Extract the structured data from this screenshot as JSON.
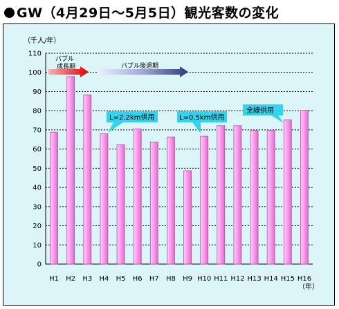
{
  "title": "GW（4月29日〜5月5日）観光客数の変化",
  "chart_data": {
    "type": "bar",
    "ylabel": "（千人/年）",
    "xunit": "（年）",
    "ylim": [
      0,
      110
    ],
    "yticks": [
      0,
      10,
      20,
      30,
      40,
      50,
      60,
      70,
      80,
      90,
      100,
      110
    ],
    "grid": true,
    "categories": [
      "H1",
      "H2",
      "H3",
      "H4",
      "H5",
      "H6",
      "H7",
      "H8",
      "H9",
      "H10",
      "H11",
      "H12",
      "H13",
      "H14",
      "H15",
      "H16"
    ],
    "values": [
      68.8,
      97.8,
      88.3,
      68.0,
      62.3,
      70.5,
      63.7,
      66.3,
      48.7,
      66.7,
      72.2,
      72.2,
      69.8,
      69.8,
      75.3,
      80.2
    ],
    "colors": {
      "bar": "#ff9cf0",
      "bar_dark": "#b050a0",
      "panel": "#dcf5f8",
      "callout": "#33d3ee"
    },
    "annotations": {
      "bubble_arrow_label_1": "バブル",
      "bubble_arrow_label_2": "成長期",
      "bubble_decline_label": "バブル後退期",
      "callouts": [
        {
          "text": "L=2.2km供用",
          "category": "H4"
        },
        {
          "text": "L=0.5km供用",
          "category": "H10"
        },
        {
          "text": "全線供用",
          "category": "H15"
        }
      ]
    }
  }
}
